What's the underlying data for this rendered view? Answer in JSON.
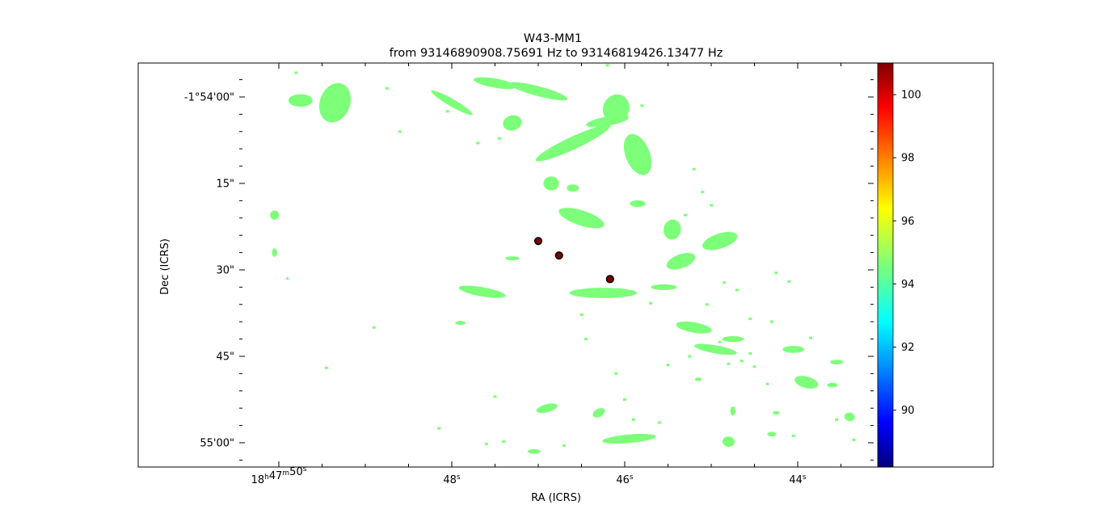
{
  "chart_data": {
    "type": "heatmap",
    "title": "W43-MM1",
    "subtitle": "from 93146890908.75691 Hz to 93146819426.13477 Hz",
    "xlabel": "RA (ICRS)",
    "ylabel": "Dec (ICRS)",
    "x_ticks": [
      {
        "value_s": 50,
        "parts": [
          [
            "18",
            "h"
          ],
          [
            "47",
            "m"
          ],
          [
            "50",
            "s"
          ]
        ]
      },
      {
        "value_s": 48,
        "parts": [
          [
            "48",
            "s"
          ]
        ]
      },
      {
        "value_s": 46,
        "parts": [
          [
            "46",
            "s"
          ]
        ]
      },
      {
        "value_s": 44,
        "parts": [
          [
            "44",
            "s"
          ]
        ]
      }
    ],
    "x_range_s": [
      50.1,
      43.2
    ],
    "y_ticks": [
      {
        "value_s": 0,
        "label": "-1°54'00\""
      },
      {
        "value_s": 15,
        "label": "15\""
      },
      {
        "value_s": 30,
        "label": "30\""
      },
      {
        "value_s": 45,
        "label": "45\""
      },
      {
        "value_s": 60,
        "label": "55'00\""
      }
    ],
    "y_range_s": [
      -6,
      64
    ],
    "colorbar": {
      "colormap": "jet",
      "range": [
        88.2,
        101
      ],
      "ticks": [
        90,
        92,
        94,
        96,
        98,
        100
      ]
    },
    "fill_value": 95,
    "fill_color": "#7dff7a",
    "blobs": [
      {
        "ra": 49.35,
        "dec": 1.0,
        "w": 0.35,
        "h": 7.0,
        "rot": 20
      },
      {
        "ra": 49.75,
        "dec": 0.6,
        "w": 0.28,
        "h": 2.2,
        "rot": 0
      },
      {
        "ra": 48.0,
        "dec": 1.0,
        "w": 0.55,
        "h": 1.3,
        "rot": 30
      },
      {
        "ra": 47.5,
        "dec": -2.4,
        "w": 0.5,
        "h": 1.6,
        "rot": 10
      },
      {
        "ra": 47.0,
        "dec": -1.0,
        "w": 0.7,
        "h": 1.7,
        "rot": 15
      },
      {
        "ra": 47.3,
        "dec": 4.5,
        "w": 0.22,
        "h": 2.6,
        "rot": -15
      },
      {
        "ra": 46.6,
        "dec": 8.0,
        "w": 0.95,
        "h": 2.2,
        "rot": -25
      },
      {
        "ra": 46.1,
        "dec": 2.0,
        "w": 0.3,
        "h": 5.0,
        "rot": 25
      },
      {
        "ra": 46.2,
        "dec": 4.2,
        "w": 0.5,
        "h": 1.6,
        "rot": -10
      },
      {
        "ra": 45.85,
        "dec": 10.0,
        "w": 0.28,
        "h": 7.5,
        "rot": -22
      },
      {
        "ra": 46.85,
        "dec": 15.0,
        "w": 0.18,
        "h": 2.4,
        "rot": 0
      },
      {
        "ra": 46.6,
        "dec": 15.8,
        "w": 0.14,
        "h": 1.3,
        "rot": 0
      },
      {
        "ra": 46.5,
        "dec": 21.0,
        "w": 0.55,
        "h": 2.6,
        "rot": 18
      },
      {
        "ra": 45.45,
        "dec": 23.0,
        "w": 0.2,
        "h": 3.5,
        "rot": 10
      },
      {
        "ra": 45.85,
        "dec": 18.5,
        "w": 0.18,
        "h": 1.2,
        "rot": 0
      },
      {
        "ra": 44.9,
        "dec": 25.0,
        "w": 0.42,
        "h": 2.6,
        "rot": -18
      },
      {
        "ra": 45.35,
        "dec": 28.5,
        "w": 0.35,
        "h": 2.4,
        "rot": -20
      },
      {
        "ra": 46.25,
        "dec": 34.0,
        "w": 0.78,
        "h": 1.8,
        "rot": 0
      },
      {
        "ra": 45.55,
        "dec": 33.0,
        "w": 0.3,
        "h": 1.0,
        "rot": 0
      },
      {
        "ra": 47.65,
        "dec": 33.8,
        "w": 0.55,
        "h": 1.6,
        "rot": 10
      },
      {
        "ra": 47.3,
        "dec": 28.0,
        "w": 0.16,
        "h": 0.7,
        "rot": 0
      },
      {
        "ra": 47.9,
        "dec": 39.2,
        "w": 0.12,
        "h": 0.7,
        "rot": 0
      },
      {
        "ra": 45.2,
        "dec": 40.0,
        "w": 0.42,
        "h": 1.8,
        "rot": 10
      },
      {
        "ra": 44.95,
        "dec": 43.8,
        "w": 0.5,
        "h": 1.4,
        "rot": 10
      },
      {
        "ra": 44.75,
        "dec": 42.0,
        "w": 0.25,
        "h": 1.0,
        "rot": 0
      },
      {
        "ra": 44.05,
        "dec": 43.8,
        "w": 0.25,
        "h": 1.2,
        "rot": 0
      },
      {
        "ra": 43.55,
        "dec": 46.0,
        "w": 0.15,
        "h": 0.8,
        "rot": 0
      },
      {
        "ra": 43.9,
        "dec": 49.5,
        "w": 0.28,
        "h": 2.0,
        "rot": 15
      },
      {
        "ra": 43.6,
        "dec": 50.0,
        "w": 0.12,
        "h": 0.8,
        "rot": 0
      },
      {
        "ra": 43.4,
        "dec": 55.5,
        "w": 0.12,
        "h": 1.5,
        "rot": 10
      },
      {
        "ra": 45.95,
        "dec": 59.3,
        "w": 0.62,
        "h": 1.5,
        "rot": -5
      },
      {
        "ra": 46.9,
        "dec": 54.0,
        "w": 0.25,
        "h": 1.4,
        "rot": -15
      },
      {
        "ra": 46.3,
        "dec": 54.8,
        "w": 0.15,
        "h": 1.4,
        "rot": -30
      },
      {
        "ra": 44.8,
        "dec": 59.8,
        "w": 0.14,
        "h": 1.8,
        "rot": 10
      },
      {
        "ra": 44.3,
        "dec": 58.5,
        "w": 0.1,
        "h": 0.8,
        "rot": 0
      },
      {
        "ra": 44.75,
        "dec": 54.5,
        "w": 0.06,
        "h": 1.6,
        "rot": 0
      },
      {
        "ra": 44.25,
        "dec": 54.8,
        "w": 0.08,
        "h": 0.6,
        "rot": 0
      },
      {
        "ra": 50.05,
        "dec": 20.5,
        "w": 0.1,
        "h": 1.6,
        "rot": 0
      },
      {
        "ra": 50.05,
        "dec": 27.0,
        "w": 0.06,
        "h": 1.5,
        "rot": 0
      },
      {
        "ra": 49.9,
        "dec": 31.5,
        "w": 0.03,
        "h": 0.5,
        "rot": 0
      },
      {
        "ra": 47.05,
        "dec": 61.5,
        "w": 0.15,
        "h": 0.8,
        "rot": 0
      },
      {
        "ra": 45.15,
        "dec": 49.0,
        "w": 0.08,
        "h": 0.6,
        "rot": 0
      }
    ],
    "speckles": [
      [
        49.8,
        -4.2
      ],
      [
        48.75,
        -1.5
      ],
      [
        48.6,
        6.0
      ],
      [
        48.05,
        2.5
      ],
      [
        47.7,
        8.0
      ],
      [
        47.45,
        7.2
      ],
      [
        46.2,
        -5.5
      ],
      [
        45.8,
        1.5
      ],
      [
        45.2,
        12.5
      ],
      [
        45.1,
        16.5
      ],
      [
        45.3,
        20.5
      ],
      [
        45.0,
        18.8
      ],
      [
        45.05,
        36.0
      ],
      [
        44.55,
        38.5
      ],
      [
        44.3,
        39.0
      ],
      [
        44.8,
        46.3
      ],
      [
        44.65,
        45.8
      ],
      [
        44.5,
        46.8
      ],
      [
        43.85,
        41.8
      ],
      [
        46.0,
        52.5
      ],
      [
        46.7,
        60.5
      ],
      [
        47.4,
        59.8
      ],
      [
        47.5,
        52.0
      ],
      [
        48.15,
        57.5
      ],
      [
        47.6,
        60.2
      ],
      [
        45.6,
        56.5
      ],
      [
        45.9,
        56.0
      ],
      [
        44.35,
        49.8
      ],
      [
        44.05,
        58.8
      ],
      [
        43.35,
        59.5
      ],
      [
        43.55,
        56.0
      ],
      [
        45.5,
        46.5
      ],
      [
        45.25,
        45.0
      ],
      [
        46.45,
        42.0
      ],
      [
        44.25,
        30.5
      ],
      [
        44.1,
        32.0
      ],
      [
        46.5,
        37.8
      ],
      [
        48.9,
        40.0
      ],
      [
        49.45,
        47.0
      ],
      [
        46.1,
        48.0
      ],
      [
        44.7,
        33.5
      ],
      [
        44.85,
        32.2
      ],
      [
        45.7,
        35.8
      ],
      [
        44.9,
        42.5
      ],
      [
        44.55,
        44.5
      ]
    ],
    "markers": [
      {
        "ra": 47.0,
        "dec": 25.0,
        "value": 101
      },
      {
        "ra": 46.76,
        "dec": 27.5,
        "value": 101
      },
      {
        "ra": 46.17,
        "dec": 31.6,
        "value": 101
      }
    ]
  }
}
